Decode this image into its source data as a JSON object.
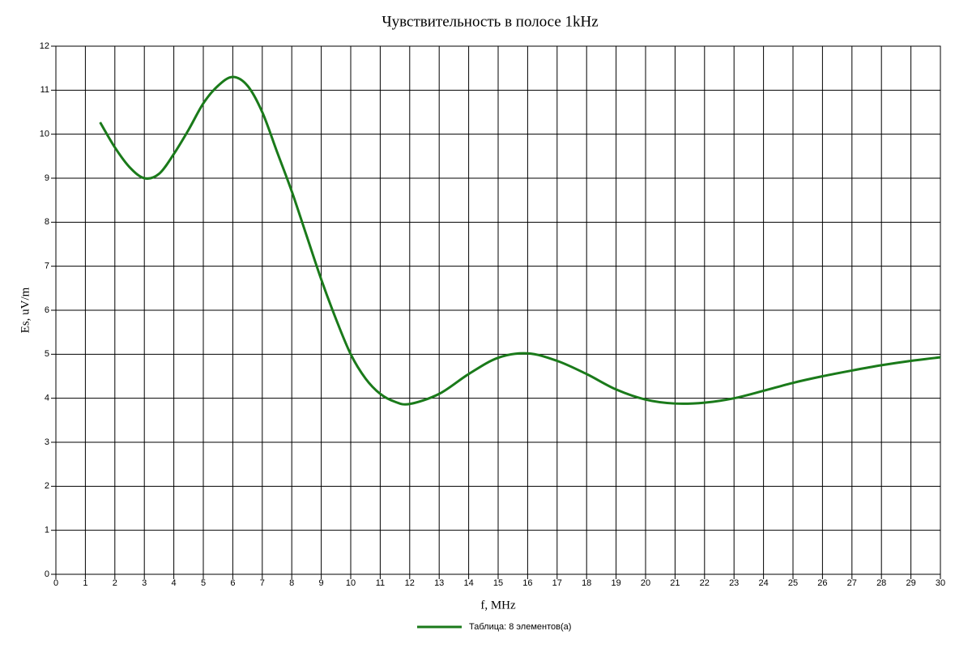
{
  "chart_data": {
    "type": "line",
    "title": "Чувствительность в полосе 1kHz",
    "x_label": "f, MHz",
    "y_label": "Es, uV/m",
    "xlim": [
      0,
      30
    ],
    "ylim": [
      0,
      12
    ],
    "xticks": [
      0,
      1,
      2,
      3,
      4,
      5,
      6,
      7,
      8,
      9,
      10,
      11,
      12,
      13,
      14,
      15,
      16,
      17,
      18,
      19,
      20,
      21,
      22,
      23,
      24,
      25,
      26,
      27,
      28,
      29,
      30
    ],
    "yticks": [
      0,
      1,
      2,
      3,
      4,
      5,
      6,
      7,
      8,
      9,
      10,
      11,
      12
    ],
    "grid": true,
    "legend": "bottom",
    "x": [
      1.5,
      2,
      2.5,
      3,
      3.5,
      4,
      4.5,
      5,
      5.5,
      6,
      6.5,
      7,
      7.5,
      8,
      8.5,
      9,
      9.5,
      10,
      10.5,
      11,
      11.5,
      12,
      13,
      14,
      15,
      16,
      17,
      18,
      19,
      20,
      21,
      22,
      23,
      24,
      25,
      26,
      27,
      28,
      29,
      30
    ],
    "series": [
      {
        "name": "Таблица: 8 элементов(а)",
        "color": "#1a7a1a",
        "values": [
          10.27,
          9.7,
          9.25,
          9.0,
          9.1,
          9.55,
          10.1,
          10.7,
          11.1,
          11.3,
          11.1,
          10.5,
          9.6,
          8.7,
          7.7,
          6.7,
          5.8,
          5.0,
          4.45,
          4.1,
          3.92,
          3.87,
          4.1,
          4.55,
          4.92,
          5.02,
          4.85,
          4.55,
          4.2,
          3.97,
          3.88,
          3.9,
          4.0,
          4.17,
          4.35,
          4.5,
          4.63,
          4.75,
          4.85,
          4.93
        ]
      }
    ]
  }
}
